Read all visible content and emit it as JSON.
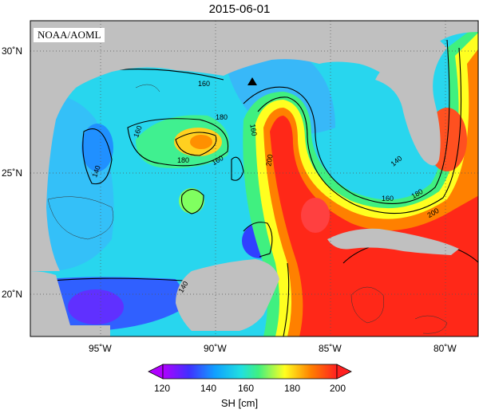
{
  "title": "2015-06-01",
  "credit": "NOAA/AOML",
  "map": {
    "lon_ticks": [
      "95˚W",
      "90˚W",
      "85˚W",
      "80˚W"
    ],
    "lat_ticks": [
      "30˚N",
      "25˚N",
      "20˚N"
    ],
    "contour_labels": [
      "160",
      "160",
      "160",
      "180",
      "160",
      "140",
      "180",
      "200",
      "160",
      "180",
      "200",
      "140",
      "140"
    ],
    "marker": "triangle"
  },
  "colorbar": {
    "ticks": [
      "120",
      "140",
      "160",
      "180",
      "200"
    ],
    "label": "SH [cm]",
    "colors": [
      "#c000ff",
      "#4040ff",
      "#20c8ff",
      "#40ff80",
      "#ffff00",
      "#ff8000",
      "#ff2020"
    ]
  }
}
